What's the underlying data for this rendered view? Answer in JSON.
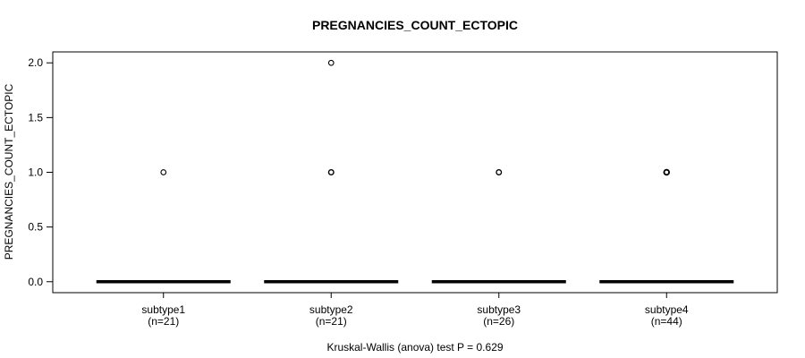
{
  "chart_data": {
    "type": "boxplot",
    "title": "PREGNANCIES_COUNT_ECTOPIC",
    "ylabel": "PREGNANCIES_COUNT_ECTOPIC",
    "footnote": "Kruskal-Wallis (anova) test P = 0.629",
    "statistical_test": {
      "name": "Kruskal-Wallis (anova) test",
      "p_value": 0.629
    },
    "y_ticks": [
      0,
      0.5,
      1,
      1.5,
      2
    ],
    "y_tick_labels": [
      "0.0",
      "0.5",
      "1.0",
      "1.5",
      "2.0"
    ],
    "ylim": [
      -0.1,
      2.1
    ],
    "grid": false,
    "legend": null,
    "foreground": "#000000",
    "background": "#ffffff",
    "groups": [
      {
        "label": "subtype1",
        "n_label": "(n=21)",
        "n": 21,
        "median": 0,
        "q1": 0,
        "q3": 0,
        "whisker_low": 0,
        "whisker_high": 0,
        "outliers": [
          {
            "value": 1,
            "weight": 1.1
          }
        ]
      },
      {
        "label": "subtype2",
        "n_label": "(n=21)",
        "n": 21,
        "median": 0,
        "q1": 0,
        "q3": 0,
        "whisker_low": 0,
        "whisker_high": 0,
        "outliers": [
          {
            "value": 2,
            "weight": 1.1
          },
          {
            "value": 1,
            "weight": 1.4
          }
        ]
      },
      {
        "label": "subtype3",
        "n_label": "(n=26)",
        "n": 26,
        "median": 0,
        "q1": 0,
        "q3": 0,
        "whisker_low": 0,
        "whisker_high": 0,
        "outliers": [
          {
            "value": 1,
            "weight": 1.3
          }
        ]
      },
      {
        "label": "subtype4",
        "n_label": "(n=44)",
        "n": 44,
        "median": 0,
        "q1": 0,
        "q3": 0,
        "whisker_low": 0,
        "whisker_high": 0,
        "outliers": [
          {
            "value": 1,
            "weight": 1.9
          }
        ]
      }
    ]
  }
}
